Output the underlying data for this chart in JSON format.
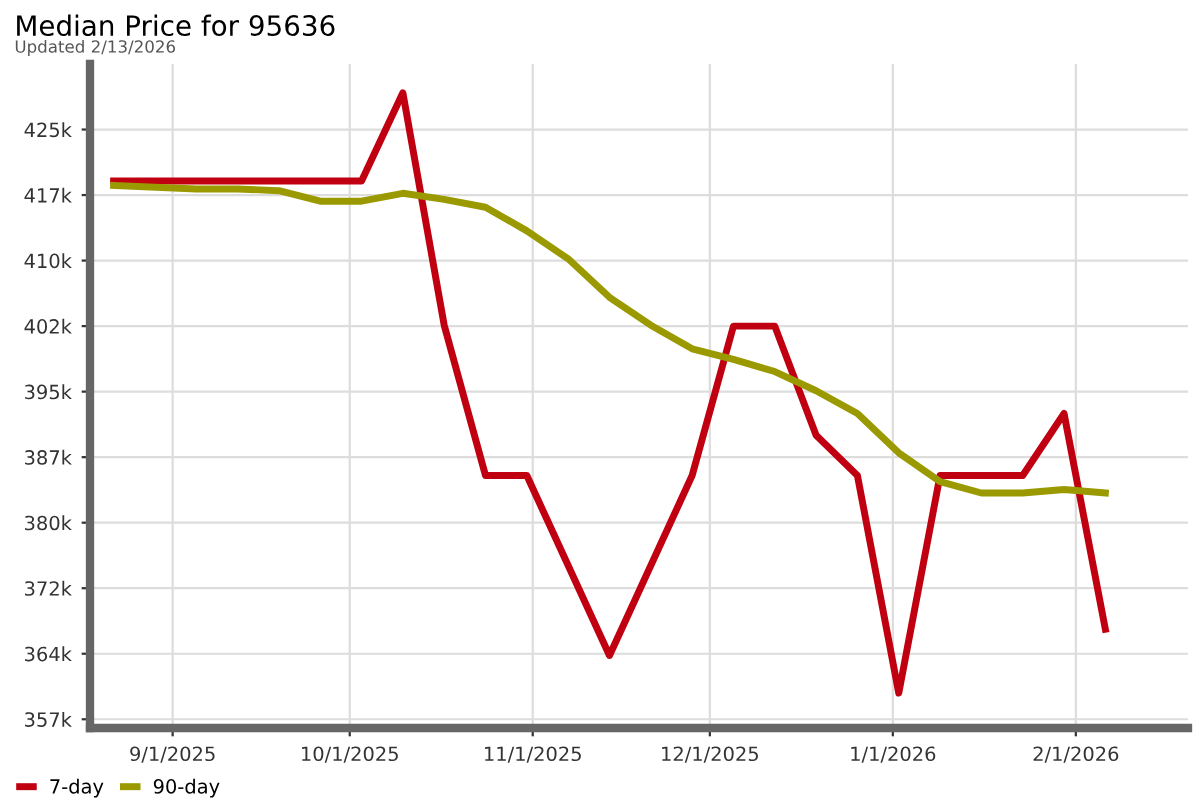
{
  "chart_data": {
    "type": "line",
    "title": "Median Price for 95636",
    "subtitle": "Updated 2/13/2026",
    "series": [
      {
        "name": "7-day",
        "color": "#c00010",
        "x": [
          "2025-08-22",
          "2025-08-29",
          "2025-09-05",
          "2025-09-12",
          "2025-09-19",
          "2025-09-26",
          "2025-10-03",
          "2025-10-10",
          "2025-10-17",
          "2025-10-24",
          "2025-10-31",
          "2025-11-14",
          "2025-11-28",
          "2025-12-05",
          "2025-12-12",
          "2025-12-19",
          "2025-12-26",
          "2026-01-02",
          "2026-01-09",
          "2026-01-16",
          "2026-01-23",
          "2026-01-30",
          "2026-02-06"
        ],
        "values": [
          418600,
          418600,
          418600,
          418600,
          418600,
          418600,
          418600,
          428700,
          402100,
          384900,
          384900,
          364300,
          384900,
          402000,
          402000,
          389500,
          384900,
          360000,
          384900,
          384900,
          384900,
          392000,
          367300
        ]
      },
      {
        "name": "90-day",
        "color": "#9a9a00",
        "x": [
          "2025-08-22",
          "2025-09-05",
          "2025-09-12",
          "2025-09-19",
          "2025-09-26",
          "2025-10-03",
          "2025-10-10",
          "2025-10-17",
          "2025-10-24",
          "2025-10-31",
          "2025-11-07",
          "2025-11-14",
          "2025-11-21",
          "2025-11-28",
          "2025-12-05",
          "2025-12-12",
          "2025-12-19",
          "2025-12-26",
          "2026-01-02",
          "2026-01-09",
          "2026-01-16",
          "2026-01-23",
          "2026-01-30",
          "2026-02-06"
        ],
        "values": [
          418100,
          417700,
          417700,
          417500,
          416300,
          416300,
          417200,
          416500,
          415600,
          412900,
          409700,
          405300,
          402100,
          399400,
          398200,
          396800,
          394600,
          392000,
          387500,
          384200,
          382900,
          382900,
          383300,
          382900
        ]
      }
    ],
    "xlim": [
      "2025-08-18",
      "2026-02-20"
    ],
    "xticks": [
      {
        "value": "2025-09-01",
        "label": "9/1/2025"
      },
      {
        "value": "2025-10-01",
        "label": "10/1/2025"
      },
      {
        "value": "2025-11-01",
        "label": "11/1/2025"
      },
      {
        "value": "2025-12-01",
        "label": "12/1/2025"
      },
      {
        "value": "2026-01-01",
        "label": "1/1/2026"
      },
      {
        "value": "2026-02-01",
        "label": "2/1/2026"
      }
    ],
    "ylim": [
      356000,
      432000
    ],
    "yticks": [
      {
        "value": 357000,
        "label": "357k"
      },
      {
        "value": 364500,
        "label": "364k"
      },
      {
        "value": 372000,
        "label": "372k"
      },
      {
        "value": 379500,
        "label": "380k"
      },
      {
        "value": 387000,
        "label": "387k"
      },
      {
        "value": 394500,
        "label": "395k"
      },
      {
        "value": 402000,
        "label": "402k"
      },
      {
        "value": 409500,
        "label": "410k"
      },
      {
        "value": 417000,
        "label": "417k"
      },
      {
        "value": 424500,
        "label": "425k"
      }
    ],
    "grid": true,
    "legend": "bottom left",
    "line_style": "solid",
    "marker": "none"
  }
}
